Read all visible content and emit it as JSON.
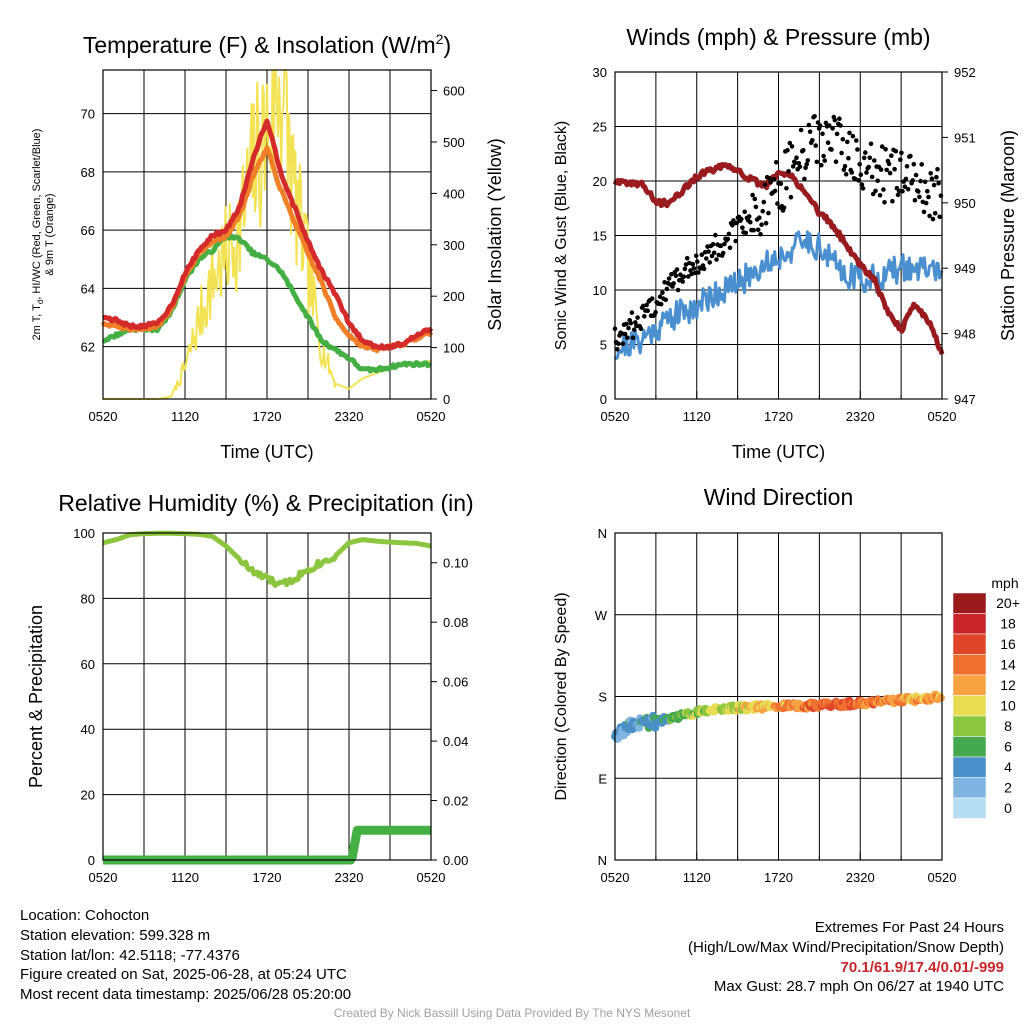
{
  "chart_data": [
    {
      "type": "line",
      "title": "Temperature (F) & Insolation (W/m²)",
      "xlabel": "Time (UTC)",
      "ylabel": "2m T, Td, HI/WC (Red, Green, Scarlet/Blue) & 9m T (Orange)",
      "ylabel_lines": [
        "2m T, T",
        "d",
        ", HI/WC (Red, Green, Scarlet/Blue)",
        "& 9m T (Orange)"
      ],
      "y2label": "Solar Insolation (Yellow)",
      "x_ticks": [
        "0520",
        "1120",
        "1720",
        "2320",
        "0520"
      ],
      "ylim": [
        60.2,
        71.5
      ],
      "y_ticks": [
        62,
        64,
        66,
        68,
        70
      ],
      "y2lim": [
        0,
        640
      ],
      "y2_ticks": [
        0,
        100,
        200,
        300,
        400,
        500,
        600
      ],
      "x_hours": [
        0,
        1,
        2,
        3,
        4,
        5,
        6,
        7,
        8,
        9,
        10,
        11,
        12,
        13,
        14,
        15,
        16,
        17,
        18,
        19,
        20,
        21,
        22,
        23,
        24
      ],
      "series": [
        {
          "color": "#d42a2a",
          "values": [
            63.0,
            62.9,
            62.7,
            62.7,
            62.8,
            63.4,
            64.5,
            65.3,
            65.8,
            66.0,
            66.8,
            68.5,
            69.8,
            68.0,
            66.8,
            65.6,
            64.6,
            63.8,
            62.8,
            62.2,
            62.0,
            62.0,
            62.1,
            62.4,
            62.6
          ]
        },
        {
          "color": "#f07f28",
          "values": [
            62.8,
            62.7,
            62.6,
            62.6,
            62.7,
            63.3,
            64.4,
            65.2,
            65.6,
            65.8,
            66.5,
            67.9,
            68.8,
            67.4,
            66.3,
            65.2,
            64.2,
            63.0,
            62.4,
            62.0,
            61.9,
            62.0,
            62.1,
            62.3,
            62.5
          ]
        },
        {
          "color": "#44b043",
          "values": [
            62.2,
            62.4,
            62.6,
            62.6,
            62.6,
            63.2,
            64.3,
            65.0,
            65.3,
            65.8,
            65.7,
            65.2,
            65.0,
            64.6,
            63.8,
            63.0,
            62.2,
            61.9,
            61.6,
            61.2,
            61.2,
            61.3,
            61.4,
            61.4,
            61.4
          ]
        },
        {
          "color": "#f3e354",
          "axis": "y2",
          "values": [
            0,
            0,
            0,
            0,
            0,
            5,
            60,
            150,
            230,
            280,
            330,
            450,
            520,
            630,
            400,
            250,
            100,
            30,
            20,
            40,
            50,
            60,
            65,
            70,
            75
          ]
        }
      ]
    },
    {
      "type": "line",
      "title": "Winds (mph) & Pressure (mb)",
      "xlabel": "Time (UTC)",
      "ylabel": "Sonic Wind & Gust (Blue, Black)",
      "y2label": "Station Pressure (Maroon)",
      "x_ticks": [
        "0520",
        "1120",
        "1720",
        "2320",
        "0520"
      ],
      "ylim": [
        0,
        30
      ],
      "y_ticks": [
        0,
        5,
        10,
        15,
        20,
        25,
        30
      ],
      "y2lim": [
        947,
        952
      ],
      "y2_ticks": [
        947,
        948,
        949,
        950,
        951,
        952
      ],
      "x_hours": [
        0,
        1,
        2,
        3,
        4,
        5,
        6,
        7,
        8,
        9,
        10,
        11,
        12,
        13,
        14,
        15,
        16,
        17,
        18,
        19,
        20,
        21,
        22,
        23,
        24
      ],
      "series": [
        {
          "color": "#4a8fd0",
          "values": [
            4.5,
            5.0,
            5.5,
            6.5,
            7.5,
            8.0,
            8.5,
            9.5,
            10.0,
            10.5,
            11.5,
            12.5,
            13.0,
            13.8,
            14.5,
            14.0,
            12.5,
            11.5,
            11.0,
            11.0,
            11.5,
            12.0,
            12.0,
            11.8,
            12.0
          ]
        },
        {
          "color": "#000000",
          "style": "points",
          "values": [
            5.5,
            6.5,
            7.5,
            9.0,
            10.5,
            11.5,
            12.5,
            13.5,
            14.5,
            15.5,
            16.5,
            18.0,
            19.5,
            21.0,
            22.5,
            24.0,
            23.5,
            22.5,
            21.5,
            21.0,
            20.5,
            20.0,
            19.5,
            19.0,
            19.5
          ]
        },
        {
          "color": "#9a1b1e",
          "axis": "y2",
          "values": [
            950.3,
            950.3,
            950.3,
            950.0,
            950.0,
            950.2,
            950.4,
            950.5,
            950.55,
            950.5,
            950.35,
            950.25,
            950.45,
            950.4,
            950.15,
            949.85,
            949.65,
            949.35,
            949.05,
            948.85,
            948.35,
            948.05,
            948.45,
            948.2,
            947.7
          ]
        }
      ]
    },
    {
      "type": "line",
      "title": "Relative Humidity (%) & Precipitation (in)",
      "xlabel": "",
      "ylabel": "Percent & Precipitation",
      "x_ticks": [
        "0520",
        "1120",
        "1720",
        "2320",
        "0520"
      ],
      "ylim": [
        0,
        100
      ],
      "y_ticks": [
        0,
        20,
        40,
        60,
        80,
        100
      ],
      "y2lim": [
        0,
        0.11
      ],
      "y2_ticks": [
        "0.00",
        "0.02",
        "0.04",
        "0.06",
        "0.08",
        "0.10"
      ],
      "x_hours": [
        0,
        1,
        2,
        3,
        4,
        5,
        6,
        7,
        8,
        9,
        10,
        11,
        12,
        13,
        14,
        15,
        16,
        17,
        18,
        19,
        20,
        21,
        22,
        23,
        24
      ],
      "series": [
        {
          "color": "#8cc63f",
          "values": [
            97,
            98,
            99.5,
            99.8,
            99.9,
            99.9,
            99.8,
            99.6,
            99.0,
            96.0,
            92.0,
            88.0,
            86.0,
            84.0,
            86.0,
            89.0,
            91.0,
            93.0,
            97.0,
            98.0,
            97.5,
            97.2,
            97.0,
            96.8,
            96.0
          ]
        },
        {
          "color": "#44b043",
          "axis": "y2",
          "values": [
            0,
            0,
            0,
            0,
            0,
            0,
            0,
            0,
            0,
            0,
            0,
            0,
            0,
            0,
            0,
            0,
            0,
            0,
            0,
            0.01,
            0.01,
            0.01,
            0.01,
            0.01,
            0.01
          ]
        }
      ]
    },
    {
      "type": "scatter",
      "title": "Wind Direction",
      "xlabel": "",
      "ylabel": "Direction (Colored By Speed)",
      "x_ticks": [
        "0520",
        "1120",
        "1720",
        "2320",
        "0520"
      ],
      "y_ticks": [
        "N",
        "E",
        "S",
        "W",
        "N"
      ],
      "ylim": [
        0,
        360
      ],
      "x_hours": [
        0,
        1,
        2,
        3,
        4,
        5,
        6,
        7,
        8,
        9,
        10,
        11,
        12,
        13,
        14,
        15,
        16,
        17,
        18,
        19,
        20,
        21,
        22,
        23,
        24
      ],
      "direction_deg": [
        140,
        145,
        150,
        153,
        156,
        160,
        163,
        165,
        166,
        167,
        168,
        169,
        170,
        170,
        170,
        171,
        171,
        172,
        173,
        174,
        175,
        176,
        177,
        178,
        180
      ],
      "speed_mph": [
        4,
        4,
        4,
        5,
        6,
        7,
        8,
        9,
        9,
        9,
        10,
        11,
        12,
        13,
        14,
        14,
        15,
        15,
        14,
        14,
        13,
        13,
        12,
        12,
        11
      ],
      "legend": {
        "title": "mph",
        "placement": "right",
        "labels": [
          "20+",
          "18",
          "16",
          "14",
          "12",
          "10",
          "8",
          "6",
          "4",
          "2",
          "0"
        ],
        "colors": [
          "#9a1b1e",
          "#c8262a",
          "#e0452a",
          "#f07030",
          "#f8a342",
          "#e8dc52",
          "#8cc63f",
          "#44a84f",
          "#4a8fc8",
          "#7fb5e0",
          "#b5dcf0"
        ]
      }
    }
  ],
  "info": {
    "location": "Location: Cohocton",
    "elevation": "Station elevation: 599.328 m",
    "latlon": "Station lat/lon: 42.5118; -77.4376",
    "created": "Figure created on Sat, 2025-06-28, at 05:24 UTC",
    "recent": "Most recent data timestamp: 2025/06/28 05:20:00"
  },
  "extremes": {
    "title": "Extremes For Past 24 Hours",
    "subtitle": "(High/Low/Max Wind/Precipitation/Snow Depth)",
    "values": "70.1/61.9/17.4/0.01/-999",
    "gust": "Max Gust: 28.7 mph On 06/27 at 1940 UTC"
  },
  "credit": "Created By Nick Bassill Using Data Provided By The NYS Mesonet"
}
